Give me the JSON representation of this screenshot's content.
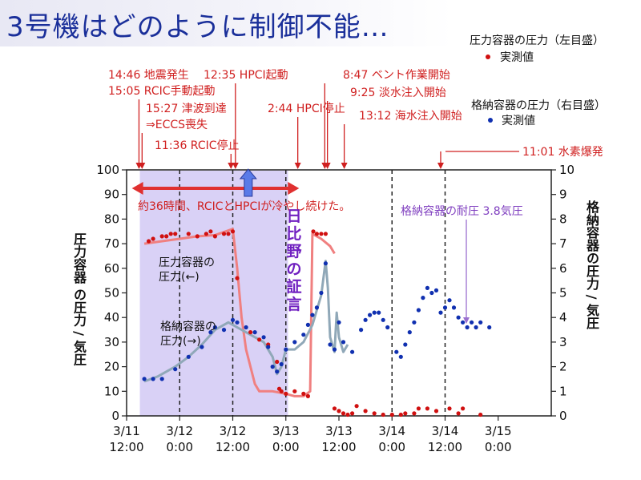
{
  "title": "3号機はどのように制御不能…",
  "legend": {
    "rpv_title": "圧力容器の圧力（左目盛）",
    "rpv_item": "実測値",
    "pcv_title": "格納容器の圧力（右目盛）",
    "pcv_item": "実測値",
    "colors": {
      "rpv": "#d01010",
      "pcv": "#1030b0"
    }
  },
  "chart_data": {
    "type": "scatter",
    "x_unit": "hours since 3/11 12:00",
    "xlim": [
      0,
      96
    ],
    "xticks": [
      {
        "x": 0,
        "line1": "3/11",
        "line2": "12:00"
      },
      {
        "x": 12,
        "line1": "3/12",
        "line2": "0:00"
      },
      {
        "x": 24,
        "line1": "3/12",
        "line2": "12:00"
      },
      {
        "x": 36,
        "line1": "3/13",
        "line2": "0:00"
      },
      {
        "x": 48,
        "line1": "3/13",
        "line2": "12:00"
      },
      {
        "x": 60,
        "line1": "3/14",
        "line2": "0:00"
      },
      {
        "x": 72,
        "line1": "3/14",
        "line2": "12:00"
      },
      {
        "x": 84,
        "line1": "3/15",
        "line2": "0:00"
      }
    ],
    "ylim_left": [
      0,
      100
    ],
    "ylim_right": [
      0,
      10
    ],
    "yticks_left": [
      0,
      10,
      20,
      30,
      40,
      50,
      60,
      70,
      80,
      90,
      100
    ],
    "yticks_right": [
      0,
      1,
      2,
      3,
      4,
      5,
      6,
      7,
      8,
      9,
      10
    ],
    "ylabel_left": "圧力容器 の圧力 / 気圧",
    "ylabel_right": "格納容器の圧力 / 気圧",
    "shaded_range": [
      3,
      36.5
    ],
    "dashed_lines": [
      12,
      24,
      36,
      60,
      72
    ],
    "series": [
      {
        "name": "圧力容器の圧力（左目盛）",
        "axis": "left",
        "points": [
          [
            5,
            71
          ],
          [
            6,
            72
          ],
          [
            8,
            73
          ],
          [
            9,
            73
          ],
          [
            10,
            74
          ],
          [
            11,
            74
          ],
          [
            14,
            74
          ],
          [
            16,
            73
          ],
          [
            18,
            74
          ],
          [
            19,
            75
          ],
          [
            20,
            73
          ],
          [
            22,
            74
          ],
          [
            23,
            74
          ],
          [
            24,
            75
          ],
          [
            25,
            56
          ],
          [
            28,
            34
          ],
          [
            30,
            31
          ],
          [
            32,
            29
          ],
          [
            34,
            22
          ],
          [
            34.5,
            11
          ],
          [
            35,
            10
          ],
          [
            36,
            9
          ],
          [
            38,
            10
          ],
          [
            40,
            9
          ],
          [
            41,
            8
          ],
          [
            42.2,
            75
          ],
          [
            43,
            74
          ],
          [
            44,
            74
          ],
          [
            45,
            74
          ],
          [
            47,
            3
          ],
          [
            48,
            2
          ],
          [
            49,
            1
          ],
          [
            50,
            0.5
          ],
          [
            51,
            1
          ],
          [
            52,
            4
          ],
          [
            54,
            2
          ],
          [
            56,
            1
          ],
          [
            58,
            0.5
          ],
          [
            60,
            0.5
          ],
          [
            62,
            0.5
          ],
          [
            63,
            1
          ],
          [
            65,
            1
          ],
          [
            66,
            3
          ],
          [
            68,
            3
          ],
          [
            70,
            2
          ],
          [
            73,
            3
          ],
          [
            75,
            1
          ],
          [
            76,
            3
          ],
          [
            80,
            0.5
          ]
        ]
      },
      {
        "name": "格納容器の圧力（右目盛）",
        "axis": "right",
        "points": [
          [
            4,
            1.5
          ],
          [
            6,
            1.5
          ],
          [
            8,
            1.5
          ],
          [
            11,
            1.9
          ],
          [
            14,
            2.4
          ],
          [
            17,
            2.8
          ],
          [
            19,
            3.4
          ],
          [
            20,
            3.6
          ],
          [
            22,
            3.5
          ],
          [
            24,
            3.9
          ],
          [
            25,
            3.8
          ],
          [
            27,
            3.6
          ],
          [
            29,
            3.4
          ],
          [
            31,
            3.2
          ],
          [
            32,
            2.8
          ],
          [
            33,
            2.0
          ],
          [
            34,
            1.8
          ],
          [
            35,
            2.1
          ],
          [
            36,
            2.7
          ],
          [
            38,
            3.0
          ],
          [
            40,
            3.3
          ],
          [
            41,
            3.7
          ],
          [
            42,
            4.1
          ],
          [
            43,
            4.4
          ],
          [
            44,
            5.0
          ],
          [
            45,
            6.2
          ],
          [
            46,
            2.9
          ],
          [
            47,
            2.7
          ],
          [
            48,
            3.8
          ],
          [
            49,
            3.0
          ],
          [
            51,
            2.6
          ],
          [
            53,
            3.5
          ],
          [
            54,
            3.9
          ],
          [
            55,
            4.1
          ],
          [
            56,
            4.2
          ],
          [
            57,
            4.2
          ],
          [
            58,
            3.9
          ],
          [
            59,
            3.6
          ],
          [
            61,
            2.6
          ],
          [
            62,
            2.4
          ],
          [
            63,
            2.9
          ],
          [
            64,
            3.4
          ],
          [
            65,
            3.8
          ],
          [
            66,
            4.3
          ],
          [
            67,
            4.8
          ],
          [
            68,
            5.2
          ],
          [
            69,
            5.0
          ],
          [
            70,
            5.1
          ],
          [
            71,
            4.2
          ],
          [
            72,
            4.4
          ],
          [
            73,
            4.7
          ],
          [
            74,
            4.4
          ],
          [
            75,
            4.0
          ],
          [
            76,
            3.8
          ],
          [
            77,
            3.6
          ],
          [
            78,
            3.8
          ],
          [
            79,
            3.6
          ],
          [
            80,
            3.8
          ],
          [
            82,
            3.6
          ]
        ]
      }
    ],
    "fit_curves": [
      {
        "color": "#f08080",
        "axis": "left",
        "points": [
          [
            4,
            70
          ],
          [
            8,
            71
          ],
          [
            12,
            72
          ],
          [
            16,
            73
          ],
          [
            20,
            73.5
          ],
          [
            24,
            76
          ],
          [
            25,
            60
          ],
          [
            26,
            40
          ],
          [
            27,
            27
          ],
          [
            28,
            20
          ],
          [
            29,
            13
          ],
          [
            30,
            10
          ],
          [
            33,
            10
          ],
          [
            36,
            9
          ],
          [
            38,
            8
          ],
          [
            40,
            8
          ],
          [
            41.5,
            10
          ],
          [
            42,
            74
          ],
          [
            44,
            72
          ],
          [
            46,
            69
          ],
          [
            47,
            66
          ]
        ]
      },
      {
        "color": "#90a8b8",
        "axis": "right",
        "points": [
          [
            4,
            1.4
          ],
          [
            7,
            1.6
          ],
          [
            11,
            2.0
          ],
          [
            14,
            2.4
          ],
          [
            17,
            2.9
          ],
          [
            20,
            3.5
          ],
          [
            23,
            3.8
          ],
          [
            25,
            3.6
          ],
          [
            28,
            3.3
          ],
          [
            31,
            3.0
          ],
          [
            33,
            2.4
          ],
          [
            34,
            1.7
          ],
          [
            35,
            2.0
          ],
          [
            36,
            2.7
          ],
          [
            38,
            2.7
          ],
          [
            40,
            3.0
          ],
          [
            42,
            3.7
          ],
          [
            44,
            4.9
          ],
          [
            45,
            6.3
          ],
          [
            45.5,
            5.2
          ],
          [
            46,
            3.2
          ],
          [
            47,
            2.6
          ],
          [
            47.5,
            4.2
          ],
          [
            48,
            3.2
          ],
          [
            49,
            2.6
          ],
          [
            50,
            2.9
          ]
        ]
      }
    ],
    "events": [
      {
        "label": "14:46 地震発生",
        "x": 2.8
      },
      {
        "label": "15:05 RCIC手動起動",
        "x": 3.1
      },
      {
        "label": "15:27 津波到達",
        "x": 3.5
      },
      {
        "label": "⇒ECCS喪失",
        "x": 3.5
      },
      {
        "label": "11:36 RCIC停止",
        "x": 23.6
      },
      {
        "label": "12:35 HPCI起動",
        "x": 24.6
      },
      {
        "label": "2:44 HPCI停止",
        "x": 38.7
      },
      {
        "label": "8:47 ベント作業開始",
        "x": 44.8
      },
      {
        "label": "9:25 淡水注入開始",
        "x": 45.4
      },
      {
        "label": "13:12 海水注入開始",
        "x": 49.2
      },
      {
        "label": "11:01 水素爆発",
        "x": 71.0
      }
    ],
    "annotations": {
      "banner": "約36時間、RCICとHPCIが冷やし続けた。",
      "vertical_note": "日比野の証言",
      "rpv_label_1": "圧力容器の",
      "rpv_label_2": "圧力(←)",
      "pcv_label_1": "格納容器の",
      "pcv_label_2": "圧力(→)",
      "design_limit": "格納容器の耐圧 3.8気圧"
    }
  }
}
